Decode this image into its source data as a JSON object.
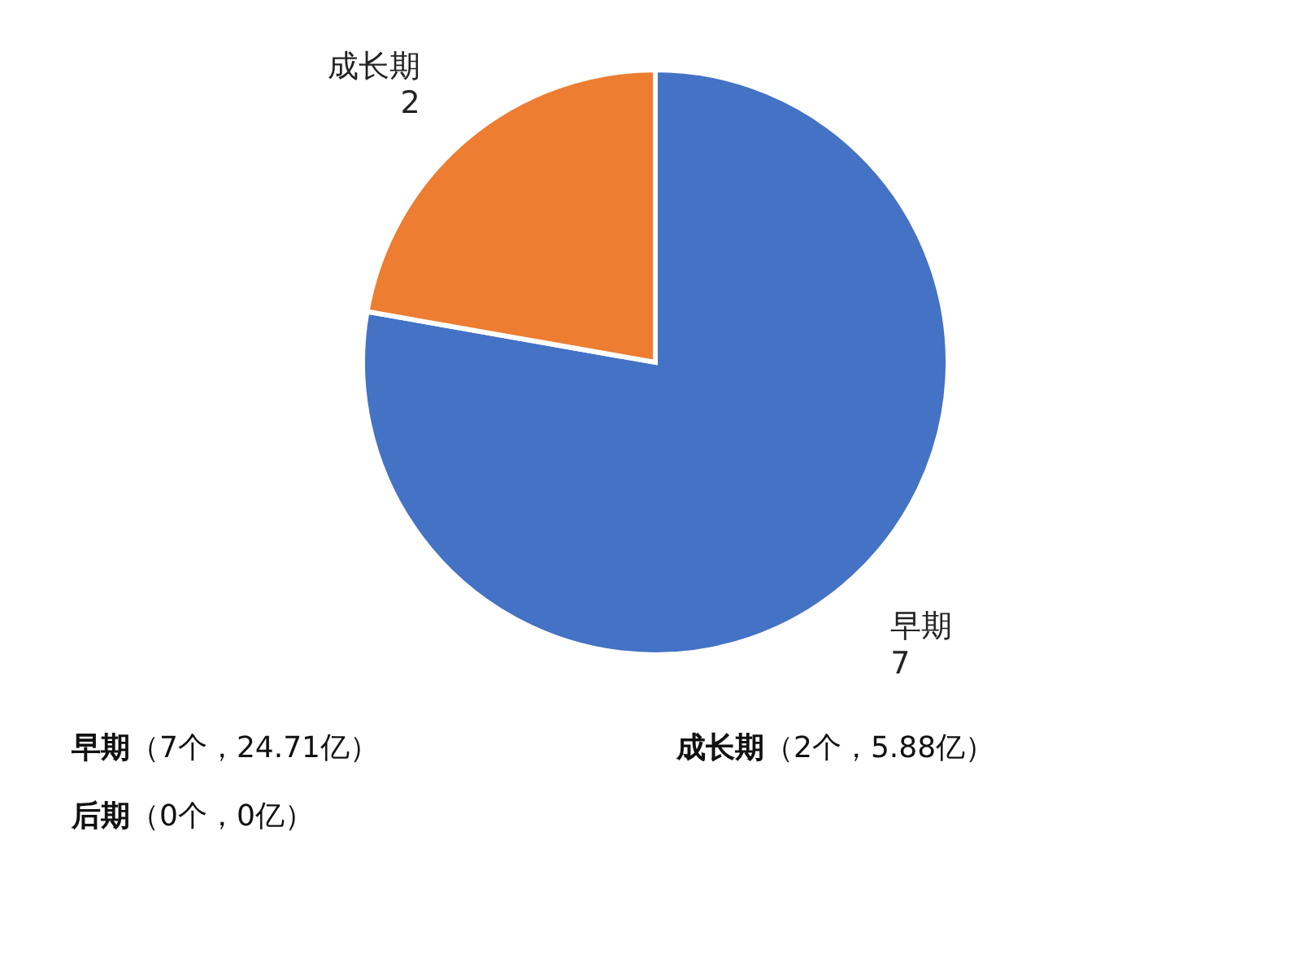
{
  "chart_data": {
    "type": "pie",
    "categories": [
      "早期",
      "成长期",
      "后期"
    ],
    "values": [
      7,
      2,
      0
    ],
    "colors": [
      "#4472c4",
      "#ed7d31",
      "#a5a5a5"
    ],
    "value_labels": [
      "7",
      "2",
      null
    ],
    "annotations": [
      "（7个，24.71亿）",
      "（2个，5.88亿）",
      "（0个，0亿）"
    ]
  }
}
